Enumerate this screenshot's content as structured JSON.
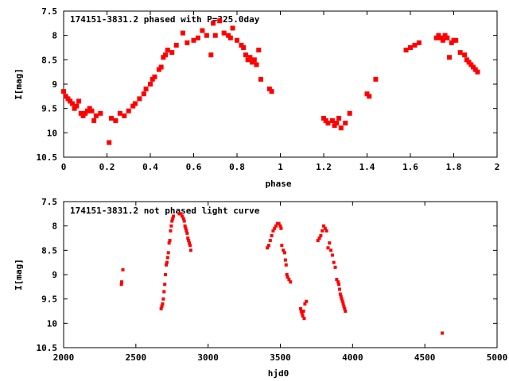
{
  "chart_data": [
    {
      "type": "scatter",
      "title": "174151-3831.2 phased with P=325.0day",
      "xlabel": "phase",
      "ylabel": "I[mag]",
      "xlim": [
        0,
        2
      ],
      "ylim": [
        7.5,
        10.5
      ],
      "y_inverted": true,
      "x_ticks": [
        0,
        0.2,
        0.4,
        0.6,
        0.8,
        1,
        1.2,
        1.4,
        1.6,
        1.8,
        2
      ],
      "x_tick_labels": [
        "0",
        "0.2",
        "0.4",
        "0.6",
        "0.8",
        "1",
        "1.2",
        "1.4",
        "1.6",
        "1.8",
        "2"
      ],
      "y_ticks": [
        7.5,
        8,
        8.5,
        9,
        9.5,
        10,
        10.5
      ],
      "y_tick_labels": [
        "7.5",
        "8",
        "8.5",
        "9",
        "9.5",
        "10",
        "10.5"
      ],
      "grid": false,
      "marker_color": "#ff0000",
      "series": [
        {
          "x": [
            0.0,
            0.01,
            0.02,
            0.03,
            0.04,
            0.05,
            0.06,
            0.07,
            0.08,
            0.09,
            0.1,
            0.11,
            0.12,
            0.13,
            0.14,
            0.15,
            0.17,
            0.21,
            0.22,
            0.24,
            0.26,
            0.28,
            0.3,
            0.32,
            0.33,
            0.35,
            0.37,
            0.38,
            0.4,
            0.41,
            0.42,
            0.44,
            0.45,
            0.46,
            0.47,
            0.48,
            0.5,
            0.52,
            0.55,
            0.57,
            0.6,
            0.62,
            0.64,
            0.66,
            0.68,
            0.69,
            0.7,
            0.72,
            0.74,
            0.76,
            0.77,
            0.78,
            0.8,
            0.82,
            0.83,
            0.84,
            0.85,
            0.86,
            0.87,
            0.88,
            0.89,
            0.9,
            0.91,
            0.95,
            0.96,
            1.2,
            1.21,
            1.22,
            1.24,
            1.25,
            1.26,
            1.27,
            1.28,
            1.3,
            1.32,
            1.4,
            1.41,
            1.44,
            1.58,
            1.6,
            1.62,
            1.64,
            1.72,
            1.73,
            1.74,
            1.75,
            1.76,
            1.77,
            1.78,
            1.79,
            1.8,
            1.81,
            1.83,
            1.85,
            1.86,
            1.87,
            1.88,
            1.89,
            1.9,
            1.91
          ],
          "y": [
            9.15,
            9.25,
            9.3,
            9.35,
            9.4,
            9.5,
            9.45,
            9.35,
            9.6,
            9.65,
            9.6,
            9.55,
            9.5,
            9.55,
            9.75,
            9.65,
            9.6,
            10.2,
            9.7,
            9.75,
            9.6,
            9.65,
            9.55,
            9.45,
            9.4,
            9.3,
            9.2,
            9.1,
            9.0,
            8.9,
            8.85,
            8.7,
            8.65,
            8.45,
            8.4,
            8.3,
            8.35,
            8.2,
            7.95,
            8.15,
            8.1,
            8.05,
            7.9,
            8.0,
            8.4,
            7.75,
            8.0,
            7.7,
            7.95,
            8.0,
            8.05,
            7.85,
            8.1,
            8.2,
            8.25,
            8.4,
            8.5,
            8.45,
            8.55,
            8.5,
            8.6,
            8.3,
            8.9,
            9.1,
            9.15,
            9.7,
            9.75,
            9.8,
            9.75,
            9.85,
            9.8,
            9.7,
            9.9,
            9.8,
            9.6,
            9.2,
            9.25,
            8.9,
            8.3,
            8.25,
            8.2,
            8.15,
            8.05,
            8.0,
            8.05,
            8.1,
            8.0,
            8.05,
            8.45,
            8.15,
            8.1,
            8.1,
            8.35,
            8.4,
            8.5,
            8.55,
            8.6,
            8.65,
            8.7,
            8.75
          ]
        }
      ]
    },
    {
      "type": "scatter",
      "title": "174151-3831.2 not phased light curve",
      "xlabel": "hjd0",
      "ylabel": "I[mag]",
      "xlim": [
        2000,
        5000
      ],
      "ylim": [
        7.5,
        10.5
      ],
      "y_inverted": true,
      "x_ticks": [
        2000,
        2500,
        3000,
        3500,
        4000,
        4500,
        5000
      ],
      "x_tick_labels": [
        "2000",
        "2500",
        "3000",
        "3500",
        "4000",
        "4500",
        "5000"
      ],
      "y_ticks": [
        7.5,
        8,
        8.5,
        9,
        9.5,
        10,
        10.5
      ],
      "y_tick_labels": [
        "7.5",
        "8",
        "8.5",
        "9",
        "9.5",
        "10",
        "10.5"
      ],
      "grid": false,
      "marker_color": "#ff0000",
      "series": [
        {
          "x": [
            2400,
            2402,
            2410,
            2675,
            2680,
            2685,
            2690,
            2695,
            2700,
            2705,
            2710,
            2715,
            2720,
            2725,
            2730,
            2735,
            2740,
            2745,
            2750,
            2755,
            2760,
            2800,
            2810,
            2820,
            2830,
            2835,
            2840,
            2845,
            2850,
            2855,
            2860,
            2865,
            2870,
            2875,
            2880,
            3410,
            3420,
            3430,
            3440,
            3450,
            3460,
            3470,
            3480,
            3490,
            3500,
            3505,
            3510,
            3520,
            3530,
            3535,
            3540,
            3545,
            3550,
            3560,
            3570,
            3640,
            3645,
            3650,
            3655,
            3660,
            3665,
            3670,
            3680,
            3760,
            3770,
            3780,
            3790,
            3800,
            3810,
            3820,
            3830,
            3840,
            3850,
            3860,
            3870,
            3880,
            3890,
            3900,
            3905,
            3910,
            3915,
            3920,
            3925,
            3930,
            3935,
            3940,
            3945,
            3950,
            4620
          ],
          "y": [
            9.2,
            9.15,
            8.9,
            9.7,
            9.65,
            9.6,
            9.5,
            9.35,
            9.2,
            9.0,
            8.8,
            8.75,
            8.65,
            8.55,
            8.35,
            8.3,
            8.1,
            8.0,
            7.9,
            7.85,
            7.8,
            7.75,
            7.75,
            7.8,
            7.85,
            7.9,
            8.0,
            8.05,
            8.1,
            8.15,
            8.25,
            8.3,
            8.35,
            8.4,
            8.5,
            8.45,
            8.4,
            8.3,
            8.2,
            8.1,
            8.05,
            8.0,
            7.95,
            7.95,
            8.0,
            8.05,
            8.4,
            8.5,
            8.55,
            8.7,
            8.8,
            9.0,
            9.05,
            9.1,
            9.15,
            9.7,
            9.75,
            9.8,
            9.85,
            9.75,
            9.9,
            9.6,
            9.55,
            8.3,
            8.25,
            8.2,
            8.1,
            8.0,
            8.05,
            8.1,
            8.45,
            8.35,
            8.5,
            8.6,
            8.75,
            8.85,
            9.1,
            9.15,
            9.2,
            9.3,
            9.4,
            9.45,
            9.5,
            9.55,
            9.6,
            9.65,
            9.7,
            9.75,
            10.2
          ]
        }
      ]
    }
  ]
}
